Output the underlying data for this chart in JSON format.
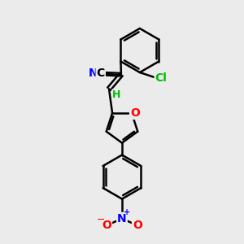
{
  "bg_color": "#ebebeb",
  "bond_color": "#000000",
  "bond_width": 1.8,
  "text_colors": {
    "N": "#0000ff",
    "O": "#ff0000",
    "Cl": "#00bb00",
    "C": "#000000",
    "H": "#00bb00"
  },
  "font_size": 10
}
